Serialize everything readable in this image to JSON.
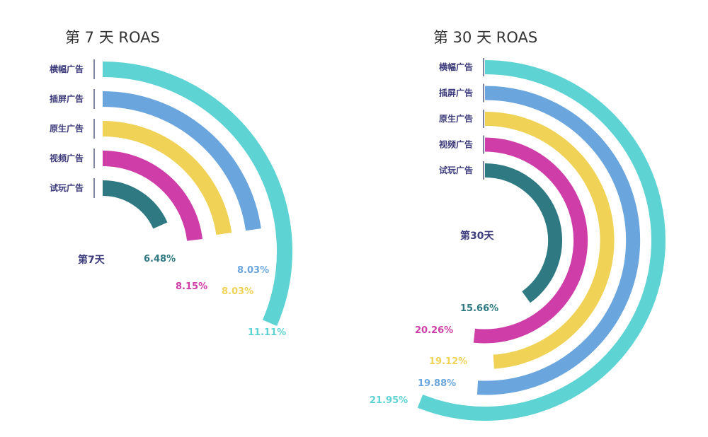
{
  "chart_data": [
    {
      "type": "radial-bar",
      "title": "第 7 天 ROAS",
      "center_label": "第7天",
      "categories": [
        "横幅广告",
        "插屏广告",
        "原生广告",
        "视频广告",
        "试玩广告"
      ],
      "values": [
        11.11,
        8.03,
        8.03,
        8.15,
        6.48
      ],
      "value_labels": [
        "11.11%",
        "8.03%",
        "8.03%",
        "8.15%",
        "6.48%"
      ],
      "unit": "%",
      "colors": [
        "#5ed3d3",
        "#6aa6dd",
        "#f0d257",
        "#cf3ea8",
        "#2f7a82"
      ]
    },
    {
      "type": "radial-bar",
      "title": "第 30 天 ROAS",
      "center_label": "第30天",
      "categories": [
        "横幅广告",
        "插屏广告",
        "原生广告",
        "视频广告",
        "试玩广告"
      ],
      "values": [
        21.95,
        19.88,
        19.12,
        20.26,
        15.66
      ],
      "value_labels": [
        "21.95%",
        "19.88%",
        "19.12%",
        "20.26%",
        "15.66%"
      ],
      "unit": "%",
      "colors": [
        "#5ed3d3",
        "#6aa6dd",
        "#f0d257",
        "#cf3ea8",
        "#2f7a82"
      ]
    }
  ]
}
